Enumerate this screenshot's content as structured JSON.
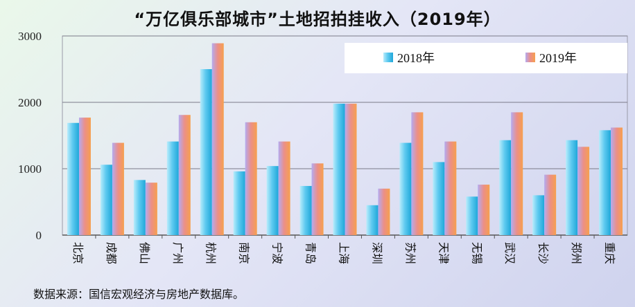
{
  "title": "“万亿俱乐部城市”土地招拍挂收入（2019年）",
  "source": "数据来源：国信宏观经济与房地产数据库。",
  "colors": {
    "s2018": "#3bbbe8",
    "s2019": "#f28c5a"
  },
  "chart_data": {
    "type": "bar",
    "title": "“万亿俱乐部城市”土地招拍挂收入（2019年）",
    "categories": [
      "北京",
      "成都",
      "佛山",
      "广州",
      "杭州",
      "南京",
      "宁波",
      "青岛",
      "上海",
      "深圳",
      "苏州",
      "天津",
      "无锡",
      "武汉",
      "长沙",
      "郑州",
      "重庆"
    ],
    "series": [
      {
        "name": "2018年",
        "values": [
          1690,
          1060,
          830,
          1410,
          2500,
          960,
          1040,
          740,
          1980,
          450,
          1390,
          1100,
          580,
          1430,
          600,
          1430,
          1580
        ]
      },
      {
        "name": "2019年",
        "values": [
          1770,
          1390,
          790,
          1810,
          2890,
          1700,
          1410,
          1080,
          1980,
          700,
          1850,
          1410,
          760,
          1850,
          910,
          1330,
          1620
        ]
      }
    ],
    "yticks": [
      "0",
      "1000",
      "2000",
      "3000"
    ],
    "ylim": [
      0,
      3000
    ],
    "grid": true,
    "legend": "top-right"
  }
}
